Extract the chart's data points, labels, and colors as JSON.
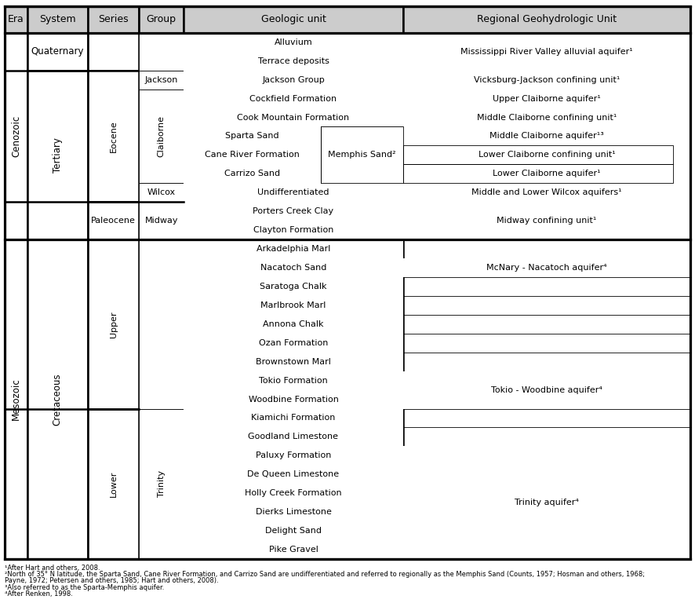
{
  "header_bg": "#cccccc",
  "cell_bg": "#ffffff",
  "thick_lw": 1.8,
  "thin_lw": 0.6,
  "font_size": 8.0,
  "header_font_size": 9.0,
  "footnotes": [
    "¹After Hart and others, 2008.",
    "²North of 35° N latitude, the Sparta Sand, Cane River Formation, and Carrizo Sand are undifferentiated and referred to regionally as the Memphis Sand (Counts, 1957; Hosman and others, 1968;",
    "Payne, 1972; Petersen and others, 1985; Hart and others, 2008).",
    "³Also referred to as the Sparta-Memphis aquifer.",
    "⁴After Renken, 1998."
  ],
  "col_props": [
    0.033,
    0.088,
    0.075,
    0.065,
    0.2,
    0.12,
    0.419
  ],
  "geo_units": [
    "Alluvium",
    "Terrace deposits",
    "Jackson Group",
    "Cockfield Formation",
    "Cook Mountain Formation",
    "Sparta Sand",
    "Cane River Formation",
    "Carrizo Sand",
    "Undifferentiated",
    "Porters Creek Clay",
    "Clayton Formation",
    "Arkadelphia Marl",
    "Nacatoch Sand",
    "Saratoga Chalk",
    "Marlbrook Marl",
    "Annona Chalk",
    "Ozan Formation",
    "Brownstown Marl",
    "Tokio Formation",
    "Woodbine Formation",
    "Kiamichi Formation",
    "Goodland Limestone",
    "Paluxy Formation",
    "De Queen Limestone",
    "Holly Creek Formation",
    "Dierks Limestone",
    "Delight Sand",
    "Pike Gravel"
  ],
  "hydro_units": [
    [
      0,
      2,
      "Mississippi River Valley alluvial aquifer¹"
    ],
    [
      2,
      3,
      "Vicksburg-Jackson confining unit¹"
    ],
    [
      3,
      4,
      "Upper Claiborne aquifer¹"
    ],
    [
      4,
      5,
      "Middle Claiborne confining unit¹"
    ],
    [
      5,
      6,
      "Middle Claiborne aquifer¹³"
    ],
    [
      6,
      7,
      "Lower Claiborne confining unit¹"
    ],
    [
      7,
      8,
      "Lower Claiborne aquifer¹"
    ],
    [
      8,
      9,
      "Middle and Lower Wilcox aquifers¹"
    ],
    [
      9,
      11,
      "Midway confining unit¹"
    ],
    [
      12,
      13,
      "McNary - Nacatoch aquifer⁴"
    ],
    [
      18,
      20,
      "Tokio - Woodbine aquifer⁴"
    ],
    [
      22,
      28,
      "Trinity aquifer⁴"
    ]
  ],
  "era_cells": [
    [
      "Cenozoic",
      0,
      11
    ],
    [
      "Mesozoic",
      11,
      28
    ]
  ],
  "system_cells": [
    [
      "Quaternary",
      0,
      2
    ],
    [
      "Tertiary",
      2,
      11
    ],
    [
      "Cretaceous",
      11,
      28
    ]
  ],
  "series_cells": [
    [
      "",
      0,
      2
    ],
    [
      "Eocene",
      2,
      9
    ],
    [
      "Paleocene",
      9,
      11
    ],
    [
      "Upper",
      11,
      20
    ],
    [
      "Lower",
      20,
      28
    ]
  ],
  "group_cells": [
    [
      "",
      0,
      2
    ],
    [
      "Jackson",
      2,
      3
    ],
    [
      "Claiborne",
      3,
      8
    ],
    [
      "Wilcox",
      8,
      9
    ],
    [
      "Midway",
      9,
      11
    ],
    [
      "",
      11,
      20
    ],
    [
      "Trinity",
      20,
      28
    ]
  ],
  "memphis_rows": [
    5,
    6,
    7
  ],
  "memphis_label": "Memphis Sand²"
}
